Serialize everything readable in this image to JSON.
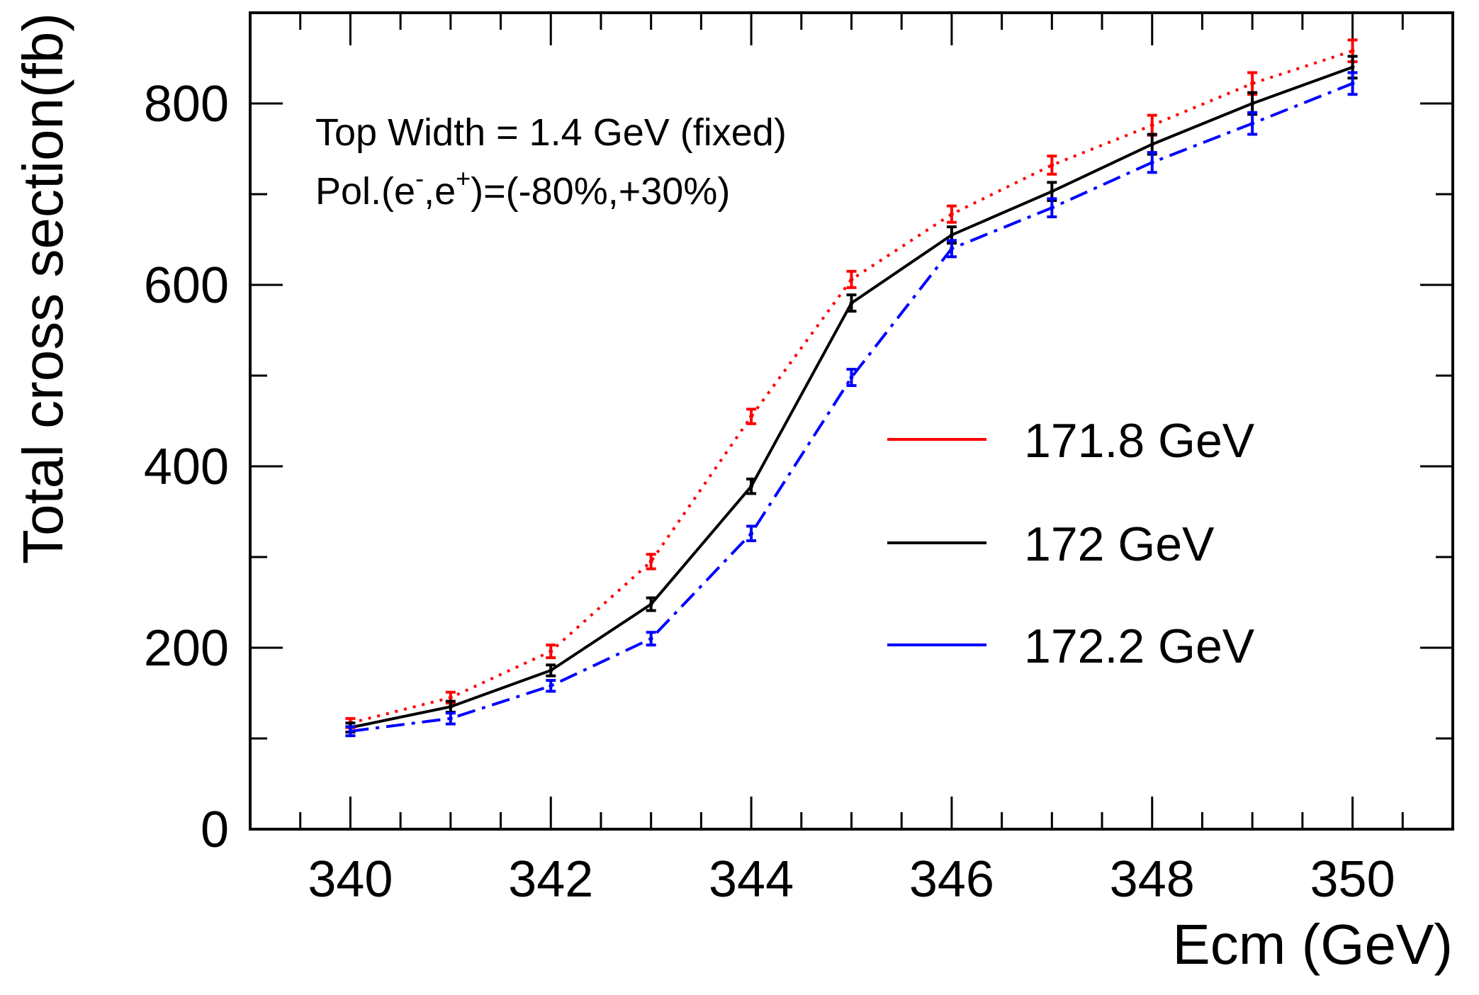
{
  "chart_data": {
    "type": "line",
    "title": "",
    "xlabel": "Ecm (GeV)",
    "ylabel": "Total cross section(fb)",
    "xlim": [
      339,
      351
    ],
    "ylim": [
      0,
      900
    ],
    "x_ticks": [
      340,
      342,
      344,
      346,
      348,
      350
    ],
    "x_tick_labels": [
      "340",
      "342",
      "344",
      "346",
      "348",
      "350"
    ],
    "y_ticks": [
      0,
      200,
      400,
      600,
      800
    ],
    "y_tick_labels": [
      "0",
      "200",
      "400",
      "600",
      "800"
    ],
    "x": [
      340,
      341,
      342,
      343,
      344,
      345,
      346,
      347,
      348,
      349,
      350
    ],
    "annotations": {
      "line1": "Top Width = 1.4 GeV (fixed)",
      "line2_prefix": "Pol.(e",
      "line2_sup1": "-",
      "line2_mid": ",e",
      "line2_sup2": "+",
      "line2_suffix": ")=(-80%,+30%)"
    },
    "legend_position": "center-right",
    "series": [
      {
        "name": "171.8 GeV",
        "color": "#ff0000",
        "dash": "dotted",
        "values": [
          117,
          145,
          196,
          295,
          455,
          606,
          678,
          732,
          776,
          822,
          858
        ],
        "errors": [
          5,
          6,
          7,
          8,
          8,
          9,
          9,
          10,
          11,
          12,
          12
        ]
      },
      {
        "name": "172 GeV",
        "color": "#000000",
        "dash": "solid",
        "values": [
          112,
          135,
          175,
          248,
          378,
          580,
          655,
          703,
          755,
          800,
          840
        ],
        "errors": [
          5,
          6,
          6,
          7,
          8,
          9,
          9,
          10,
          11,
          12,
          12
        ]
      },
      {
        "name": "172.2 GeV",
        "color": "#0000ff",
        "dash": "dash-dot",
        "values": [
          108,
          122,
          158,
          210,
          326,
          498,
          640,
          685,
          735,
          778,
          822
        ],
        "errors": [
          5,
          6,
          6,
          7,
          8,
          9,
          9,
          10,
          11,
          12,
          12
        ]
      }
    ]
  }
}
